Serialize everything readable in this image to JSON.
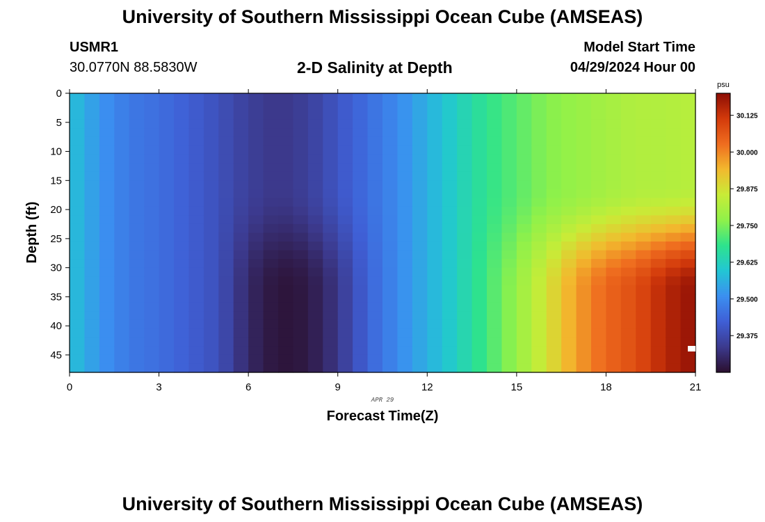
{
  "header": {
    "title": "University of Southern Mississippi Ocean Cube (AMSEAS)",
    "station_id": "USMR1",
    "station_coords": "30.0770N  88.5830W",
    "start_label": "Model Start Time",
    "start_value": "04/29/2024 Hour 00"
  },
  "footer": {
    "title": "University of Southern Mississippi Ocean Cube (AMSEAS)"
  },
  "chart_data": {
    "type": "heatmap",
    "title": "2-D Salinity at Depth",
    "xlabel": "Forecast Time(Z)",
    "ylabel": "Depth (ft)",
    "date_label": "APR 29",
    "x_ticks": [
      0,
      3,
      6,
      9,
      12,
      15,
      18,
      21
    ],
    "y_ticks": [
      0,
      5,
      10,
      15,
      20,
      25,
      30,
      35,
      40,
      45
    ],
    "xlim": [
      0,
      21
    ],
    "ylim": [
      0,
      48
    ],
    "x_hours": [
      0,
      1,
      2,
      3,
      4,
      5,
      6,
      7,
      8,
      9,
      10,
      11,
      12,
      13,
      14,
      15,
      16,
      17,
      18,
      19,
      20,
      21
    ],
    "surface_salinity": [
      29.59,
      29.52,
      29.47,
      29.45,
      29.42,
      29.39,
      29.35,
      29.33,
      29.35,
      29.4,
      29.45,
      29.5,
      29.56,
      29.62,
      29.68,
      29.72,
      29.76,
      29.78,
      29.8,
      29.82,
      29.82,
      29.83
    ],
    "bottom_salinity": [
      29.59,
      29.52,
      29.47,
      29.45,
      29.42,
      29.39,
      29.3,
      29.26,
      29.27,
      29.33,
      29.43,
      29.5,
      29.56,
      29.62,
      29.7,
      29.78,
      29.87,
      29.97,
      30.04,
      30.08,
      30.15,
      30.19
    ],
    "colorbar": {
      "label": "psu",
      "min": 29.25,
      "max": 30.2,
      "ticks": [
        "29.375",
        "29.500",
        "29.625",
        "29.750",
        "29.875",
        "30.000",
        "30.125"
      ]
    },
    "colors": {
      "scale": [
        "#2b0f2e",
        "#3c3a8e",
        "#3f5fd6",
        "#3b8ff0",
        "#22c6d4",
        "#2ee38c",
        "#8ff14a",
        "#c8ec37",
        "#f2b92e",
        "#ef6d1f",
        "#d33a0b",
        "#8c0d04"
      ]
    }
  }
}
